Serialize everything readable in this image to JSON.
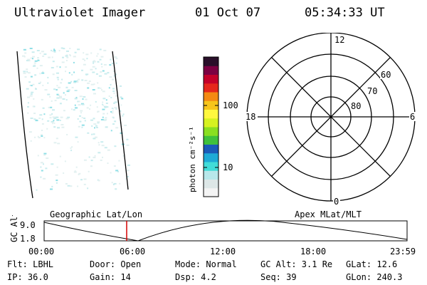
{
  "header": {
    "title": "Ultraviolet Imager",
    "date": "01 Oct 07",
    "time": "05:34:33 UT"
  },
  "colorbar": {
    "unit_label": "photon cm⁻²s⁻¹",
    "tick_100": "100",
    "tick_10": "10",
    "colors": [
      "#f4f4f4",
      "#dde7e7",
      "#b7e7ea",
      "#41dcd8",
      "#1eaad6",
      "#1a5bb8",
      "#3fc13c",
      "#8adf20",
      "#d6f220",
      "#fff83e",
      "#f7c51a",
      "#f48a13",
      "#e5271c",
      "#c4002a",
      "#7c0042",
      "#2a0f2a"
    ]
  },
  "polar": {
    "mlt_labels": {
      "top": "12",
      "bottom": "0",
      "left": "18",
      "right": "6"
    },
    "lat_labels": [
      "60",
      "70",
      "80"
    ]
  },
  "timeline": {
    "left_label": "Geographic Lat/Lon",
    "right_label": "Apex MLat/MLT",
    "axis_title": "GC Alt",
    "y_high": "9.0",
    "y_low": "1.8",
    "x_ticks": [
      "00:00",
      "06:00",
      "12:00",
      "18:00",
      "23:59"
    ],
    "marker_color": "#d40000"
  },
  "info": {
    "flt": "Flt: LBHL",
    "ip": "IP: 36.0",
    "door": "Door: Open",
    "gain": "Gain: 14",
    "mode": "Mode: Normal",
    "dsp": "Dsp:     4.2",
    "gc_alt": "GC Alt: 3.1 Re",
    "seq": "Seq: 39",
    "glat": "GLat:  12.6",
    "glon": "GLon: 240.3"
  }
}
